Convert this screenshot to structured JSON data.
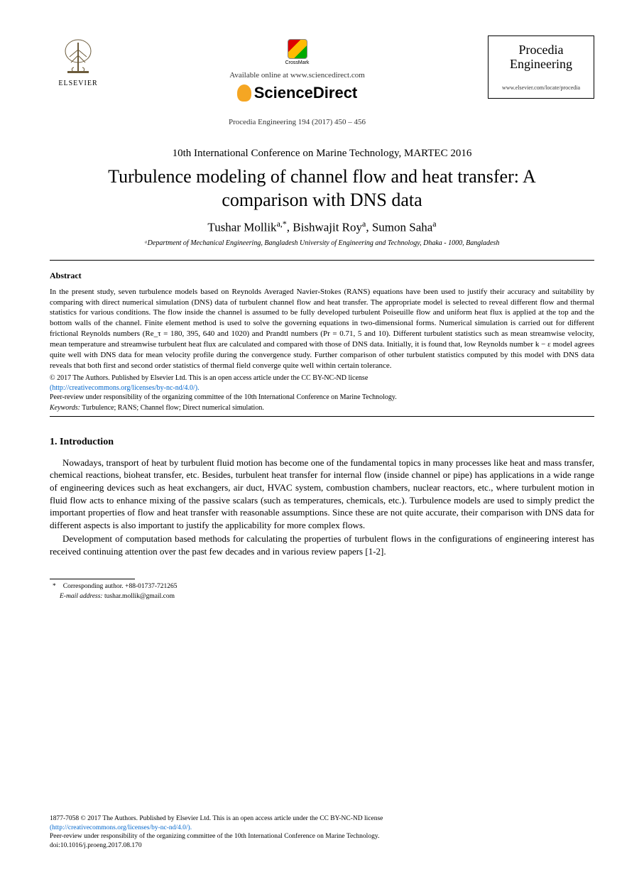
{
  "header": {
    "elsevier_label": "ELSEVIER",
    "crossmark_label": "CrossMark",
    "available_text": "Available online at www.sciencedirect.com",
    "sciencedirect": "ScienceDirect",
    "citation": "Procedia Engineering 194 (2017) 450 – 456",
    "journal_name_l1": "Procedia",
    "journal_name_l2": "Engineering",
    "journal_url": "www.elsevier.com/locate/procedia"
  },
  "conference": "10th International Conference on Marine Technology, MARTEC 2016",
  "title_l1": "Turbulence modeling of channel flow and heat transfer: A",
  "title_l2": "comparison with DNS data",
  "authors_html": "Tushar Mollik<sup>a,*</sup>, Bishwajit Roy<sup>a</sup>, Sumon Saha<sup>a</sup>",
  "affiliation": "ᵃDepartment of Mechanical Engineering, Bangladesh University of Engineering and Technology, Dhaka - 1000, Bangladesh",
  "abstract_heading": "Abstract",
  "abstract_body": "In the present study, seven turbulence models based on Reynolds Averaged Navier-Stokes (RANS) equations have been used to justify their accuracy and suitability by comparing with direct numerical simulation (DNS) data of turbulent channel flow and heat transfer. The appropriate model is selected to reveal different flow and thermal statistics for various conditions. The flow inside the channel is assumed to be fully developed turbulent Poiseuille flow and uniform heat flux is applied at the top and the bottom walls of the channel. Finite element method is used to solve the governing equations in two-dimensional forms. Numerical simulation is carried out for different frictional Reynolds numbers (Re_τ = 180, 395, 640 and 1020) and Prandtl numbers (Pr = 0.71, 5 and 10). Different turbulent statistics such as mean streamwise velocity, mean temperature and streamwise turbulent heat flux are calculated and compared with those of DNS data. Initially, it is found that, low Reynolds number k − ε model agrees quite well with DNS data for mean velocity profile during the convergence study. Further comparison of other turbulent statistics computed by this model with DNS data reveals that both first and second order statistics of thermal field converge quite well within certain tolerance.",
  "copyright_line1": "© 2017 The Authors. Published by Elsevier Ltd. This is an open access article under the CC BY-NC-ND license",
  "copyright_link": "(http://creativecommons.org/licenses/by-nc-nd/4.0/).",
  "peer_review": "Peer-review under responsibility of the organizing committee of the 10th International Conference on Marine Technology.",
  "keywords_label": "Keywords:",
  "keywords_text": "  Turbulence; RANS; Channel flow; Direct numerical simulation.",
  "section1_heading": "1. Introduction",
  "para1": "Nowadays, transport of heat by turbulent fluid motion has become one of the fundamental topics in many processes like heat and mass transfer, chemical reactions, bioheat transfer, etc. Besides, turbulent heat transfer for internal flow (inside channel or pipe) has applications in a wide range of engineering devices such as heat exchangers, air duct, HVAC system, combustion chambers, nuclear reactors, etc., where turbulent motion in fluid flow acts to enhance mixing of the passive scalars (such as temperatures, chemicals, etc.). Turbulence models are used to simply predict the important properties of flow and heat transfer with reasonable assumptions. Since these are not quite accurate, their comparison with DNS data for different aspects is also important to justify the applicability for more complex flows.",
  "para2": "Development of computation based methods for calculating the properties of turbulent flows in the configurations of engineering interest has received continuing attention over the past few decades and in various review papers [1-2].",
  "footnote_corr": "Corresponding author. +88-01737-721265",
  "footnote_email_label": "E-mail address:",
  "footnote_email": " tushar.mollik@gmail.com",
  "footer_line1": "1877-7058 © 2017 The Authors. Published by Elsevier Ltd. This is an open access article under the CC BY-NC-ND license",
  "footer_link": "(http://creativecommons.org/licenses/by-nc-nd/4.0/).",
  "footer_line2": "Peer-review under responsibility of the organizing committee of the 10th International Conference on Marine Technology.",
  "footer_doi": "doi:10.1016/j.proeng.2017.08.170"
}
